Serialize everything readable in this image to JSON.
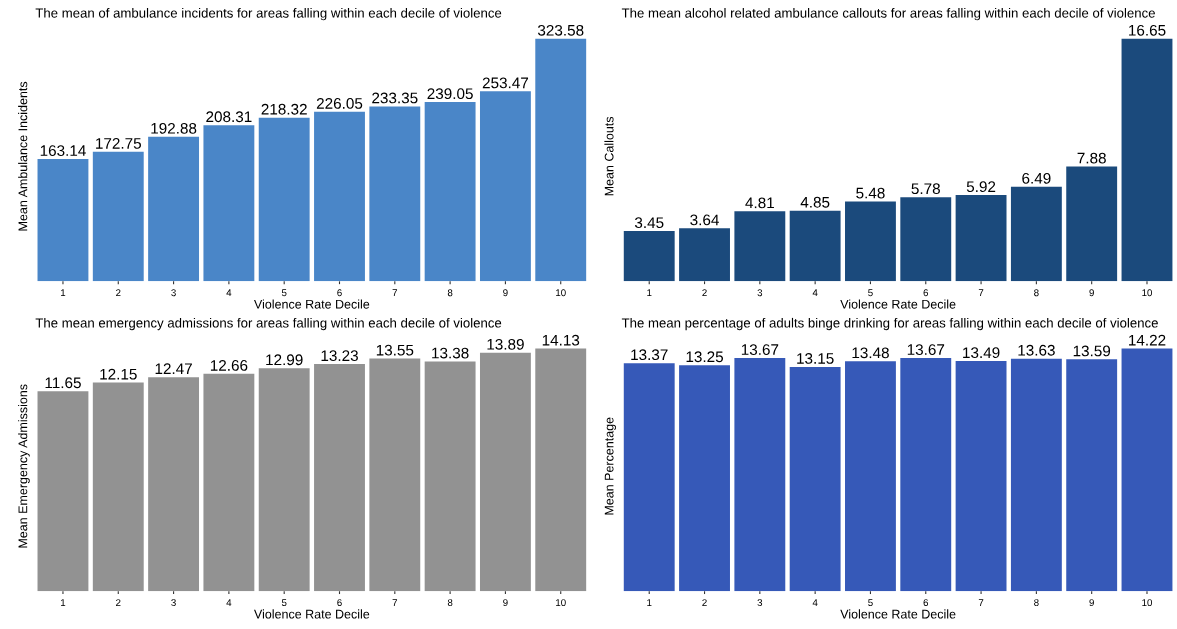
{
  "chart_data": [
    {
      "type": "bar",
      "title": "The mean of ambulance incidents for areas falling within each decile of violence",
      "xlabel": "Violence Rate Decile",
      "ylabel": "Mean Ambulance Incidents",
      "categories": [
        "1",
        "2",
        "3",
        "4",
        "5",
        "6",
        "7",
        "8",
        "9",
        "10"
      ],
      "values": [
        163.14,
        172.75,
        192.88,
        208.31,
        218.32,
        226.05,
        233.35,
        239.05,
        253.47,
        323.58
      ],
      "color": "#4a86c8",
      "data_labels": true,
      "tick_labels": "x",
      "grid": false,
      "legend": false
    },
    {
      "type": "bar",
      "title": "The mean alcohol related ambulance callouts for areas falling within each decile of violence",
      "xlabel": "Violence Rate Decile",
      "ylabel": "Mean Callouts",
      "categories": [
        "1",
        "2",
        "3",
        "4",
        "5",
        "6",
        "7",
        "8",
        "9",
        "10"
      ],
      "values": [
        3.45,
        3.64,
        4.81,
        4.85,
        5.48,
        5.78,
        5.92,
        6.49,
        7.88,
        16.65
      ],
      "color": "#1b4a7c",
      "data_labels": true,
      "tick_labels": "x",
      "grid": false,
      "legend": false
    },
    {
      "type": "bar",
      "title": "The mean emergency admissions for areas falling within each decile of violence",
      "xlabel": "Violence Rate Decile",
      "ylabel": "Mean Emergency Admissions",
      "categories": [
        "1",
        "2",
        "3",
        "4",
        "5",
        "6",
        "7",
        "8",
        "9",
        "10"
      ],
      "values": [
        11.65,
        12.15,
        12.47,
        12.66,
        12.99,
        13.23,
        13.55,
        13.38,
        13.89,
        14.13
      ],
      "color": "#929292",
      "data_labels": true,
      "tick_labels": "x",
      "grid": false,
      "legend": false
    },
    {
      "type": "bar",
      "title": "The mean percentage of adults binge drinking for areas falling within each decile of violence",
      "xlabel": "Violence Rate Decile",
      "ylabel": "Mean Percentage",
      "categories": [
        "1",
        "2",
        "3",
        "4",
        "5",
        "6",
        "7",
        "8",
        "9",
        "10"
      ],
      "values": [
        13.37,
        13.25,
        13.67,
        13.15,
        13.48,
        13.67,
        13.49,
        13.63,
        13.59,
        14.22
      ],
      "color": "#3659b8",
      "data_labels": true,
      "tick_labels": "x",
      "grid": false,
      "legend": false
    }
  ]
}
